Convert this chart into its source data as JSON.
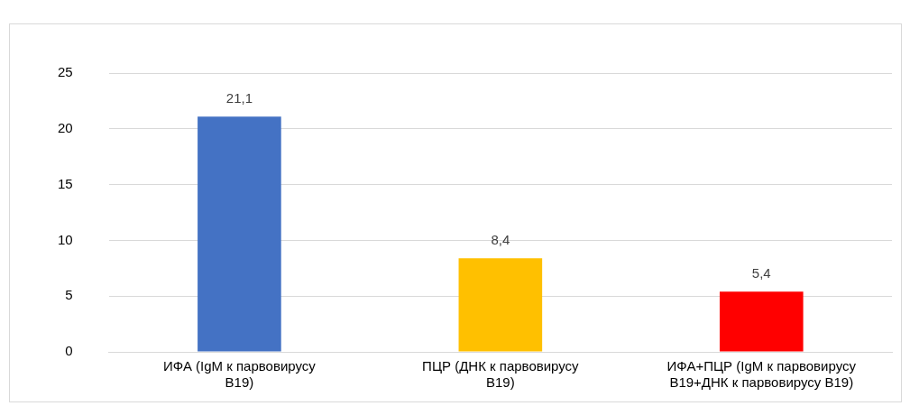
{
  "chart_data": {
    "type": "bar",
    "categories": [
      "ИФА (IgM к парвовирусу В19)",
      "ПЦР (ДНК к парвовирусу В19)",
      "ИФА+ПЦР (IgM к парвовирусу В19+ДНК к парвовирусу В19)"
    ],
    "values": [
      21.1,
      8.4,
      5.4
    ],
    "colors": [
      "#4472c4",
      "#ffc000",
      "#ff0000"
    ],
    "value_labels": [
      "21,1",
      "8,4",
      "5,4"
    ],
    "ylim": [
      0,
      25
    ],
    "yticks": [
      0,
      5,
      10,
      15,
      20,
      25
    ],
    "grid": "y",
    "legend": false
  }
}
